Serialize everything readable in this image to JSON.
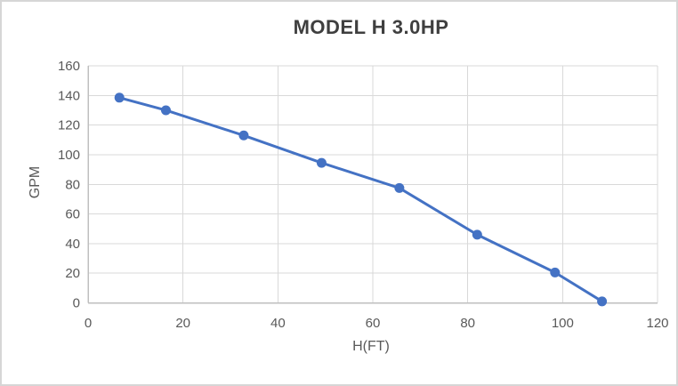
{
  "window": {
    "background": "#ffffff",
    "border_color": "#d6d6d6"
  },
  "chart_data": {
    "type": "line",
    "title": "MODEL H 3.0HP",
    "xlabel": "H(FT)",
    "ylabel": "GPM",
    "x": [
      6.6,
      16.4,
      32.8,
      49.2,
      65.6,
      82,
      98.4,
      108.3
    ],
    "y": [
      138.5,
      130,
      113,
      94.5,
      77.5,
      46,
      20.5,
      1
    ],
    "xlim": [
      0,
      120
    ],
    "ylim": [
      0,
      160
    ],
    "x_ticks": [
      0,
      20,
      40,
      60,
      80,
      100,
      120
    ],
    "y_ticks": [
      0,
      20,
      40,
      60,
      80,
      100,
      120,
      140,
      160
    ],
    "grid": true,
    "legend": "none",
    "marker": "circle",
    "colors": {
      "series": "#4472C4",
      "gridline": "#d9d9d9",
      "axis_line": "#bfbfbf",
      "tick_text": "#595959",
      "axis_title_text": "#595959",
      "title_text": "#3f3f3f"
    }
  }
}
